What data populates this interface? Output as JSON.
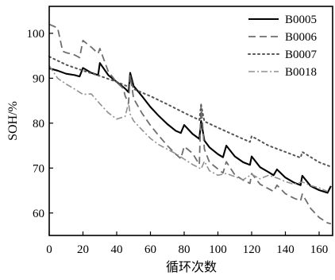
{
  "chart_data": {
    "type": "line",
    "xlabel": "循环次数",
    "ylabel": "SOH/%",
    "xlim": [
      0,
      168
    ],
    "ylim": [
      55,
      106
    ],
    "xticks": [
      0,
      20,
      40,
      60,
      80,
      100,
      120,
      140,
      160
    ],
    "yticks": [
      60,
      70,
      80,
      90,
      100
    ],
    "grid": false,
    "legend_position": "top-right",
    "series": [
      {
        "name": "B0005",
        "style": "solid",
        "color": "#000000",
        "x": [
          0,
          5,
          10,
          15,
          18,
          20,
          25,
          29,
          30,
          35,
          40,
          45,
          47,
          48,
          50,
          55,
          60,
          65,
          70,
          75,
          78,
          80,
          85,
          89,
          90,
          92,
          95,
          100,
          103,
          105,
          110,
          115,
          119,
          120,
          125,
          130,
          133,
          135,
          140,
          145,
          149,
          150,
          155,
          160,
          165,
          167
        ],
        "y": [
          92.2,
          91.7,
          91.0,
          90.7,
          90.4,
          92.3,
          91.2,
          90.7,
          93.4,
          90.7,
          89.2,
          87.7,
          86.9,
          91.2,
          88.3,
          86.0,
          83.6,
          81.6,
          79.8,
          78.3,
          77.8,
          79.6,
          77.6,
          76.5,
          80.5,
          76.1,
          74.6,
          73.1,
          72.4,
          75.0,
          72.6,
          71.3,
          70.7,
          72.6,
          70.2,
          69.1,
          68.4,
          69.7,
          67.9,
          66.8,
          66.2,
          68.3,
          66.0,
          65.1,
          64.5,
          66.0
        ]
      },
      {
        "name": "B0006",
        "style": "dashed",
        "color": "#6e6e6e",
        "x": [
          0,
          5,
          8,
          10,
          15,
          18,
          20,
          25,
          29,
          30,
          35,
          40,
          44,
          45,
          47,
          48,
          50,
          55,
          60,
          65,
          70,
          75,
          78,
          80,
          85,
          89,
          90,
          92,
          95,
          100,
          103,
          105,
          110,
          115,
          119,
          120,
          125,
          130,
          133,
          135,
          140,
          145,
          149,
          150,
          155,
          160,
          165,
          167
        ],
        "y": [
          102.0,
          101.2,
          96.0,
          95.7,
          95.2,
          94.6,
          98.4,
          96.9,
          95.5,
          96.6,
          91.5,
          89.1,
          87.7,
          86.1,
          84.4,
          90.7,
          85.5,
          82.2,
          79.5,
          77.2,
          75.0,
          73.1,
          72.1,
          74.8,
          73.3,
          70.8,
          84.2,
          74.2,
          71.3,
          69.8,
          68.9,
          71.4,
          68.5,
          67.3,
          66.6,
          68.8,
          66.4,
          65.4,
          64.8,
          66.2,
          64.3,
          63.3,
          62.7,
          64.2,
          61.0,
          59.0,
          57.8,
          57.6
        ]
      },
      {
        "name": "B0007",
        "style": "dotted",
        "color": "#555555",
        "x": [
          0,
          10,
          20,
          30,
          40,
          47,
          48,
          50,
          60,
          70,
          80,
          89,
          90,
          92,
          100,
          110,
          119,
          120,
          130,
          140,
          149,
          150,
          160,
          167
        ],
        "y": [
          94.8,
          93.0,
          91.7,
          90.5,
          89.2,
          88.1,
          90.4,
          87.6,
          86.0,
          84.2,
          82.3,
          80.7,
          84.0,
          80.4,
          79.0,
          77.3,
          75.8,
          77.1,
          75.0,
          73.6,
          72.3,
          73.6,
          71.3,
          70.3
        ]
      },
      {
        "name": "B0018",
        "style": "dashdot",
        "color": "#909090",
        "x": [
          0,
          5,
          10,
          15,
          20,
          25,
          30,
          35,
          40,
          45,
          47,
          48,
          50,
          55,
          60,
          65,
          70,
          75,
          80,
          85,
          90,
          92,
          95,
          100,
          105,
          110,
          115,
          120,
          125,
          130,
          135,
          140,
          145,
          150,
          155,
          160,
          165
        ],
        "y": [
          92.8,
          90.0,
          88.7,
          87.6,
          86.4,
          86.5,
          84.3,
          82.3,
          80.9,
          81.5,
          84.5,
          82.0,
          80.5,
          78.5,
          76.6,
          75.2,
          74.2,
          73.2,
          72.0,
          70.8,
          69.8,
          71.5,
          69.4,
          68.4,
          68.8,
          68.1,
          67.4,
          68.6,
          67.6,
          68.4,
          67.8,
          67.0,
          66.4,
          66.9,
          66.1,
          65.6,
          64.8
        ]
      }
    ]
  }
}
